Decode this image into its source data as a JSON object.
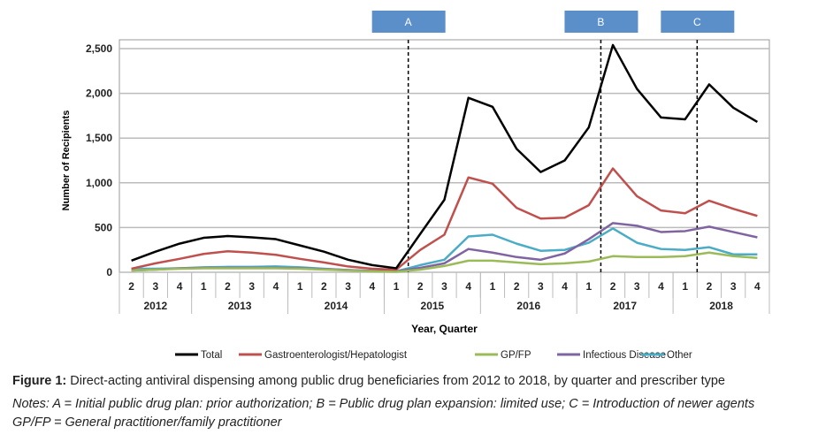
{
  "chart_data": {
    "type": "line",
    "ylabel": "Number of Recipients",
    "xlabel": "Year, Quarter",
    "ylim": [
      0,
      2500
    ],
    "yticks": [
      "0",
      "500",
      "1,000",
      "1,500",
      "2,000",
      "2,500"
    ],
    "ytick_values": [
      0,
      500,
      1000,
      1500,
      2000,
      2500
    ],
    "grid": true,
    "legend_position": "bottom",
    "years": [
      {
        "label": "2012",
        "quarters": [
          "2",
          "3",
          "4"
        ]
      },
      {
        "label": "2013",
        "quarters": [
          "1",
          "2",
          "3",
          "4"
        ]
      },
      {
        "label": "2014",
        "quarters": [
          "1",
          "2",
          "3",
          "4"
        ]
      },
      {
        "label": "2015",
        "quarters": [
          "1",
          "2",
          "3",
          "4"
        ]
      },
      {
        "label": "2016",
        "quarters": [
          "1",
          "2",
          "3",
          "4"
        ]
      },
      {
        "label": "2017",
        "quarters": [
          "1",
          "2",
          "3",
          "4"
        ]
      },
      {
        "label": "2018",
        "quarters": [
          "1",
          "2",
          "3",
          "4"
        ]
      }
    ],
    "series": [
      {
        "name": "Total",
        "color": "#000000",
        "values": [
          130,
          230,
          320,
          385,
          405,
          390,
          370,
          300,
          230,
          140,
          80,
          45,
          430,
          810,
          1950,
          1850,
          1380,
          1120,
          1250,
          1620,
          2540,
          2050,
          1730,
          1710,
          2100,
          1840,
          1680
        ]
      },
      {
        "name": "Gastroenterologist/Hepatologist",
        "color": "#c0504d",
        "values": [
          40,
          100,
          150,
          205,
          235,
          220,
          195,
          150,
          110,
          65,
          40,
          30,
          250,
          420,
          1060,
          990,
          720,
          600,
          610,
          750,
          1160,
          850,
          690,
          660,
          800,
          710,
          630
        ]
      },
      {
        "name": "GP/FP",
        "color": "#9bbb59",
        "values": [
          20,
          30,
          40,
          45,
          45,
          45,
          45,
          40,
          30,
          20,
          10,
          5,
          30,
          70,
          130,
          130,
          110,
          90,
          100,
          120,
          180,
          170,
          170,
          180,
          220,
          180,
          160
        ]
      },
      {
        "name": "Infectious Disease",
        "color": "#8064a2",
        "values": [
          20,
          30,
          45,
          50,
          50,
          50,
          50,
          45,
          35,
          25,
          15,
          10,
          50,
          100,
          260,
          220,
          170,
          140,
          210,
          370,
          550,
          520,
          450,
          460,
          510,
          450,
          390
        ]
      },
      {
        "name": "Other",
        "color": "#4bacc6",
        "values": [
          40,
          40,
          45,
          55,
          60,
          60,
          65,
          55,
          40,
          25,
          15,
          10,
          80,
          140,
          400,
          420,
          320,
          240,
          250,
          330,
          490,
          330,
          260,
          250,
          280,
          200,
          200
        ]
      }
    ],
    "annotations": [
      {
        "label": "A",
        "between": [
          "2015 Q1",
          "2015 Q2"
        ]
      },
      {
        "label": "B",
        "between": [
          "2017 Q1",
          "2017 Q2"
        ]
      },
      {
        "label": "C",
        "between": [
          "2018 Q1",
          "2018 Q2"
        ]
      }
    ],
    "annotation_color": "#5b8fc9"
  },
  "caption": {
    "figure_label": "Figure 1:",
    "figure_text": " Direct-acting antiviral dispensing among public drug beneficiaries from 2012 to 2018, by quarter and prescriber type",
    "notes_line1": "Notes: A = Initial public drug plan: prior authorization; B = Public drug plan expansion: limited use; C = Introduction of newer agents",
    "notes_line2": "GP/FP = General practitioner/family practitioner"
  }
}
